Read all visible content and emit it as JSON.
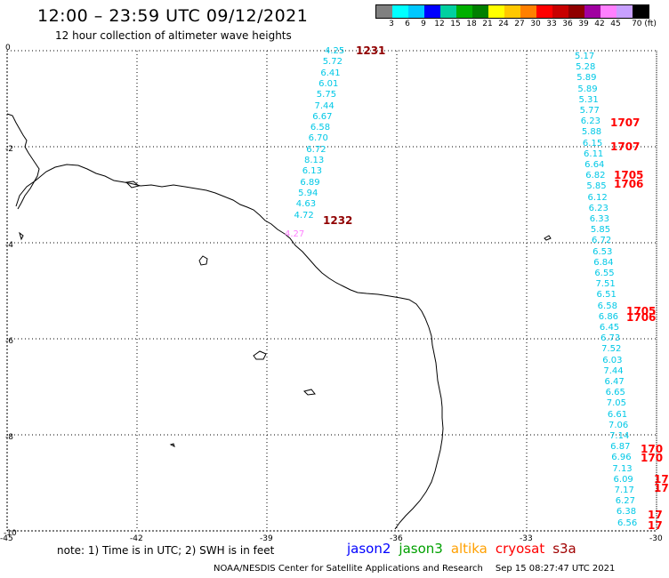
{
  "header": {
    "title": "12:00 – 23:59 UTC 09/12/2021",
    "subtitle": "12 hour collection of altimeter wave heights"
  },
  "legend": {
    "colors": [
      "#808080",
      "#00ffff",
      "#00c8ff",
      "#0000ff",
      "#00d0a0",
      "#00b000",
      "#008000",
      "#ffff00",
      "#ffc800",
      "#ff8000",
      "#ff0000",
      "#c80000",
      "#900000",
      "#a000a0",
      "#ff80ff",
      "#c8a0ff",
      "#000000"
    ],
    "labels": [
      "3",
      "6",
      "9",
      "12",
      "15",
      "18",
      "21",
      "24",
      "27",
      "30",
      "33",
      "36",
      "39",
      "42",
      "45",
      "70 (ft)"
    ]
  },
  "axes": {
    "y_labels": [
      "0",
      "-2",
      "-4",
      "-6",
      "-8",
      "-10"
    ],
    "x_labels": [
      "-45",
      "-42",
      "-39",
      "-36",
      "-33",
      "-30"
    ]
  },
  "tracks": {
    "track_a": {
      "color": "#00c8e6",
      "values": [
        "4.25",
        "5.72",
        "6.41",
        "6.01",
        "5.75",
        "7.44",
        "6.67",
        "6.58",
        "6.70",
        "6.72",
        "8.13",
        "6.13",
        "6.89",
        "5.94",
        "4.63",
        "4.72"
      ],
      "last_value": "4.27",
      "last_color": "#ff80ff",
      "passes": [
        {
          "label": "1231",
          "color": "#900000"
        },
        {
          "label": "1232",
          "color": "#900000"
        }
      ]
    },
    "track_b": {
      "color": "#00c8e6",
      "values": [
        "5.17",
        "5.28",
        "5.89",
        "5.89",
        "5.31",
        "5.77",
        "6.23",
        "5.88",
        "6.15",
        "6.11",
        "6.64",
        "6.82",
        "5.85",
        "6.12",
        "6.23",
        "6.33",
        "5.85",
        "6.72",
        "6.53",
        "6.84",
        "6.55",
        "7.51",
        "6.51",
        "6.58",
        "6.86",
        "6.45",
        "6.73",
        "7.52",
        "6.03",
        "7.44",
        "6.47",
        "6.65",
        "7.05",
        "6.61",
        "7.06",
        "7.14",
        "6.87",
        "6.96",
        "7.13",
        "6.09",
        "7.17",
        "6.27",
        "6.38",
        "6.56"
      ],
      "passes": [
        {
          "label": "1707",
          "color": "#ff0000"
        },
        {
          "label": "1707",
          "color": "#ff0000"
        },
        {
          "label": "1705",
          "color": "#ff0000"
        },
        {
          "label": "1706",
          "color": "#ff0000"
        },
        {
          "label": "1705",
          "color": "#ff0000"
        },
        {
          "label": "1706",
          "color": "#ff0000"
        },
        {
          "label": "170",
          "color": "#ff0000"
        },
        {
          "label": "170",
          "color": "#ff0000"
        },
        {
          "label": "17",
          "color": "#ff0000"
        },
        {
          "label": "17",
          "color": "#ff0000"
        },
        {
          "label": "17",
          "color": "#ff0000"
        },
        {
          "label": "17",
          "color": "#ff0000"
        }
      ]
    }
  },
  "footer": {
    "note": "note: 1) Time is in UTC; 2) SWH is in feet",
    "satellites": [
      {
        "name": "jason2",
        "color": "#0000ff"
      },
      {
        "name": "jason3",
        "color": "#00a000"
      },
      {
        "name": "altika",
        "color": "#ffa000"
      },
      {
        "name": "cryosat",
        "color": "#ff0000"
      },
      {
        "name": "s3a",
        "color": "#a00000"
      }
    ],
    "credit": "NOAA/NESDIS Center for Satellite Applications and Research",
    "timestamp": "Sep 15 08:27:47 UTC 2021"
  }
}
